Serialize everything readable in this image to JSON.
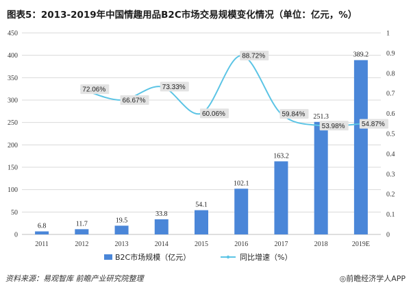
{
  "title": "图表5：2013-2019年中国情趣用品B2C市场交易规模变化情况（单位：亿元，%）",
  "source": "资料来源：易观智库 前瞻产业研究院整理",
  "brand": "◎前瞻经济学人APP",
  "colors": {
    "bar": "#4a86d8",
    "line": "#5bc4e5",
    "grid": "#d9d9d9",
    "label_bg": "#e3e3e3"
  },
  "chart_data": {
    "type": "bar",
    "categories": [
      "2011",
      "2012",
      "2013",
      "2014",
      "2015",
      "2016",
      "2017",
      "2018",
      "2019E"
    ],
    "series": [
      {
        "name": "B2C市场规模（亿元）",
        "type": "bar",
        "axis": "left",
        "values": [
          6.8,
          11.7,
          19.5,
          33.8,
          54.1,
          102.1,
          163.2,
          251.3,
          389.2
        ],
        "labels": [
          "6.8",
          "11.7",
          "19.5",
          "33.8",
          "54.1",
          "102.1",
          "163.2",
          "251.3",
          "389.2"
        ]
      },
      {
        "name": "同比增速（%）",
        "type": "line",
        "axis": "right",
        "values": [
          null,
          0.7206,
          0.6667,
          0.7333,
          0.6006,
          0.8872,
          0.5984,
          0.5398,
          0.5487
        ],
        "labels": [
          "",
          "72.06%",
          "66.67%",
          "73.33%",
          "60.06%",
          "88.72%",
          "59.84%",
          "53.98%",
          "54.87%"
        ]
      }
    ],
    "ylim_left": [
      0,
      450
    ],
    "yticks_left": [
      "0",
      "50",
      "100",
      "150",
      "200",
      "250",
      "300",
      "350",
      "400",
      "450"
    ],
    "ylim_right": [
      0,
      1
    ],
    "yticks_right": [
      "0",
      "0.1",
      "0.2",
      "0.3",
      "0.4",
      "0.5",
      "0.6",
      "0.7",
      "0.8",
      "0.9",
      "1"
    ],
    "grid": true,
    "legend_position": "bottom"
  }
}
